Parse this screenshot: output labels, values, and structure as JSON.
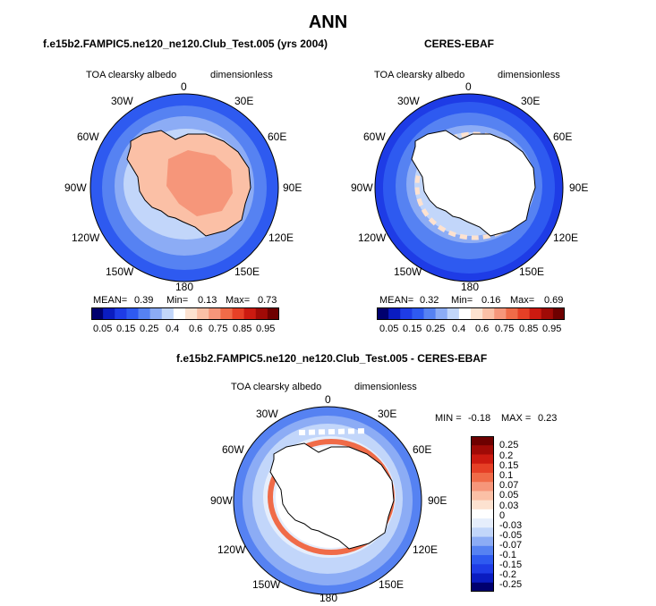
{
  "page": {
    "title": "ANN"
  },
  "colors": {
    "abs": [
      "#00006e",
      "#0a1cc0",
      "#1e3ce6",
      "#2e5af0",
      "#5682f2",
      "#8cacf5",
      "#c2d6fa",
      "#ffffff",
      "#fde2d0",
      "#fbc0a6",
      "#f6967a",
      "#f06b48",
      "#e64026",
      "#cc1a10",
      "#a00a06",
      "#6e0000"
    ],
    "diff": [
      "#00006e",
      "#0a1cc0",
      "#1e3ce6",
      "#2e5af0",
      "#5682f2",
      "#8cacf5",
      "#c2d6fa",
      "#e6eefc",
      "#ffffff",
      "#fde2d0",
      "#fbc0a6",
      "#f6967a",
      "#f06b48",
      "#e64026",
      "#cc1a10",
      "#a00a06",
      "#6e0000"
    ]
  },
  "chart_data": [
    {
      "type": "heatmap",
      "projection": "south-polar-stereographic",
      "title": "f.e15b2.FAMPIC5.ne120_ne120.Club_Test.005 (yrs 2004)",
      "variable": "TOA clearsky albedo",
      "units": "dimensionless",
      "longitude_labels": [
        "0",
        "30E",
        "60E",
        "90E",
        "120E",
        "150E",
        "180",
        "150W",
        "120W",
        "90W",
        "60W",
        "30W"
      ],
      "stats": {
        "mean_label": "MEAN=",
        "mean": "0.39",
        "min_label": "Min=",
        "min": "0.13",
        "max_label": "Max=",
        "max": "0.73"
      },
      "colorbar_ticks": [
        "0.05",
        "0.15",
        "0.25",
        "0.4",
        "0.6",
        "0.75",
        "0.85",
        "0.95"
      ]
    },
    {
      "type": "heatmap",
      "projection": "south-polar-stereographic",
      "title": "CERES-EBAF",
      "variable": "TOA clearsky albedo",
      "units": "dimensionless",
      "longitude_labels": [
        "0",
        "30E",
        "60E",
        "90E",
        "120E",
        "150E",
        "180",
        "150W",
        "120W",
        "90W",
        "60W",
        "30W"
      ],
      "stats": {
        "mean_label": "MEAN=",
        "mean": "0.32",
        "min_label": "Min=",
        "min": "0.16",
        "max_label": "Max=",
        "max": "0.69"
      },
      "colorbar_ticks": [
        "0.05",
        "0.15",
        "0.25",
        "0.4",
        "0.6",
        "0.75",
        "0.85",
        "0.95"
      ]
    },
    {
      "type": "heatmap",
      "projection": "south-polar-stereographic",
      "title": "f.e15b2.FAMPIC5.ne120_ne120.Club_Test.005 - CERES-EBAF",
      "variable": "TOA clearsky albedo",
      "units": "dimensionless",
      "longitude_labels": [
        "0",
        "30E",
        "60E",
        "90E",
        "120E",
        "150E",
        "180",
        "150W",
        "120W",
        "90W",
        "60W",
        "30W"
      ],
      "stats": {
        "min_label": "MIN =",
        "min": "-0.18",
        "max_label": "MAX =",
        "max": "0.23"
      },
      "colorbar_ticks": [
        "0.25",
        "0.2",
        "0.15",
        "0.1",
        "0.07",
        "0.05",
        "0.03",
        "0",
        "-0.03",
        "-0.05",
        "-0.07",
        "-0.1",
        "-0.15",
        "-0.2",
        "-0.25"
      ]
    }
  ]
}
